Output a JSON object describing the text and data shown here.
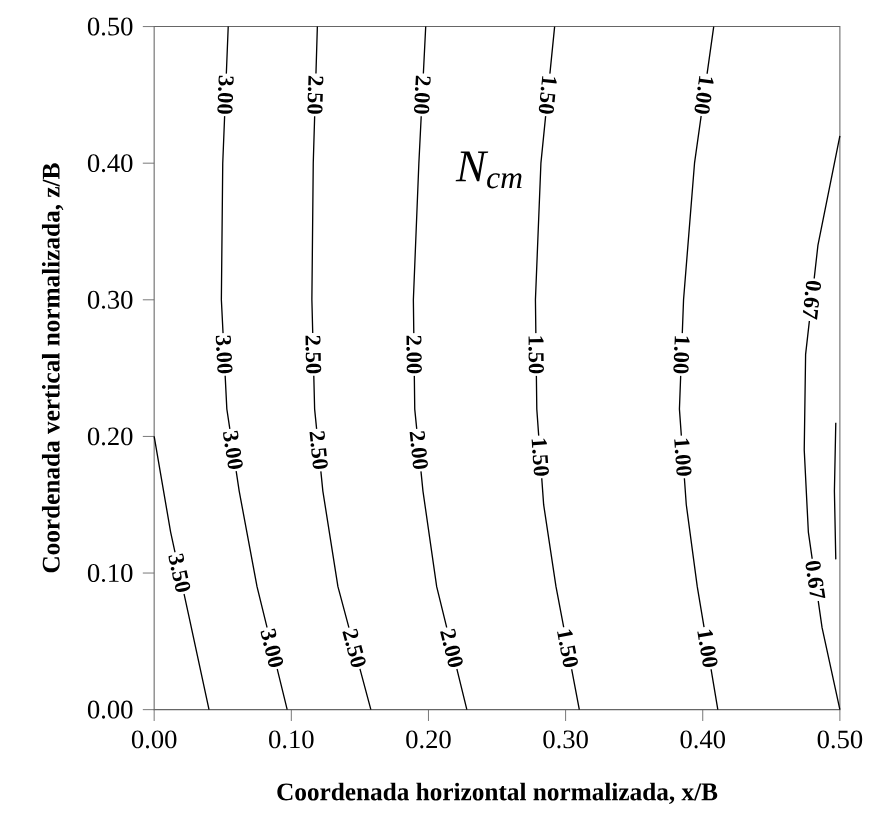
{
  "chart_data": {
    "type": "line",
    "xlabel": "Coordenada horizontal normalizada, x/B",
    "ylabel": "Coordenada vertical normalizada, z/B",
    "xlim": [
      0,
      0.5
    ],
    "ylim": [
      0,
      0.5
    ],
    "xticks": [
      {
        "value": 0,
        "label": "0.00"
      },
      {
        "value": 0.1,
        "label": "0.10"
      },
      {
        "value": 0.2,
        "label": "0.20"
      },
      {
        "value": 0.3,
        "label": "0.30"
      },
      {
        "value": 0.4,
        "label": "0.40"
      },
      {
        "value": 0.5,
        "label": "0.50"
      }
    ],
    "yticks": [
      {
        "value": 0,
        "label": "0.00"
      },
      {
        "value": 0.1,
        "label": "0.10"
      },
      {
        "value": 0.2,
        "label": "0.20"
      },
      {
        "value": 0.3,
        "label": "0.30"
      },
      {
        "value": 0.4,
        "label": "0.40"
      },
      {
        "value": 0.5,
        "label": "0.50"
      }
    ],
    "grid": false,
    "legend": false,
    "marker": "none",
    "line_style": "solid",
    "annotations": [
      "*N*$_{cm}$"
    ],
    "series": [
      {
        "name": "3.50",
        "color": "#000000",
        "x": [
          0.0,
          0.012,
          0.025,
          0.04
        ],
        "values": [
          0.2,
          0.13,
          0.07,
          0.0
        ]
      },
      {
        "name": "3.00",
        "color": "#000000",
        "x": [
          0.054,
          0.05,
          0.049,
          0.053,
          0.062,
          0.075,
          0.097
        ],
        "values": [
          0.5,
          0.4,
          0.3,
          0.22,
          0.16,
          0.09,
          0.0
        ]
      },
      {
        "name": "2.50",
        "color": "#000000",
        "x": [
          0.119,
          0.116,
          0.115,
          0.117,
          0.123,
          0.134,
          0.158
        ],
        "values": [
          0.5,
          0.4,
          0.3,
          0.22,
          0.16,
          0.09,
          0.0
        ]
      },
      {
        "name": "2.00",
        "color": "#000000",
        "x": [
          0.198,
          0.193,
          0.189,
          0.19,
          0.196,
          0.206,
          0.228
        ],
        "values": [
          0.5,
          0.4,
          0.3,
          0.22,
          0.16,
          0.09,
          0.0
        ]
      },
      {
        "name": "1.50",
        "color": "#000000",
        "x": [
          0.292,
          0.282,
          0.278,
          0.279,
          0.284,
          0.293,
          0.31
        ],
        "values": [
          0.5,
          0.4,
          0.3,
          0.22,
          0.15,
          0.09,
          0.0
        ]
      },
      {
        "name": "1.00",
        "color": "#000000",
        "x": [
          0.408,
          0.394,
          0.386,
          0.383,
          0.388,
          0.396,
          0.411
        ],
        "values": [
          0.5,
          0.4,
          0.3,
          0.22,
          0.15,
          0.09,
          0.0
        ]
      },
      {
        "name": "0.67",
        "color": "#000000",
        "x": [
          0.5,
          0.484,
          0.475,
          0.474,
          0.477,
          0.487,
          0.5
        ],
        "values": [
          0.42,
          0.34,
          0.26,
          0.19,
          0.13,
          0.06,
          0.0
        ]
      },
      {
        "color": "#000000",
        "x": [
          0.497,
          0.496,
          0.497
        ],
        "values": [
          0.21,
          0.16,
          0.11
        ]
      }
    ]
  }
}
